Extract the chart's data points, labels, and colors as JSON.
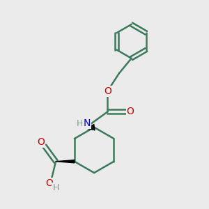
{
  "bg_color": "#ebebeb",
  "line_color": "#3a7a5a",
  "bond_width": 1.8,
  "atom_colors": {
    "O": "#cc0000",
    "N": "#0000cc",
    "H_gray": "#7a9a8a",
    "C": "#3a7a5a"
  },
  "figsize": [
    3.0,
    3.0
  ],
  "dpi": 100,
  "xlim": [
    0,
    10
  ],
  "ylim": [
    0,
    10
  ]
}
